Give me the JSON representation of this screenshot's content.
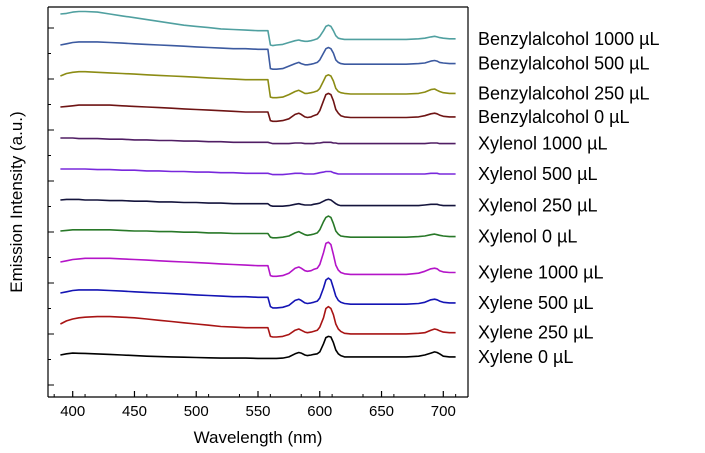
{
  "chart_data": {
    "type": "line",
    "title": "",
    "xlabel": "Wavelength (nm)",
    "ylabel": "Emission Intensity (a.u.)",
    "xlim": [
      380,
      720
    ],
    "xticks": [
      400,
      450,
      500,
      550,
      600,
      650,
      700
    ],
    "y_tick_labels": "none",
    "grid": false,
    "legend": "labels placed at the right end of each trace",
    "stack_order": "bottom to top",
    "x": [
      390,
      395,
      400,
      405,
      410,
      420,
      430,
      440,
      450,
      460,
      470,
      480,
      490,
      500,
      510,
      520,
      530,
      540,
      550,
      555,
      558,
      560,
      562,
      565,
      570,
      575,
      580,
      583,
      585,
      588,
      590,
      593,
      595,
      598,
      600,
      603,
      605,
      607,
      609,
      611,
      613,
      615,
      617,
      620,
      625,
      630,
      640,
      650,
      660,
      670,
      680,
      685,
      690,
      693,
      695,
      697,
      700,
      705,
      710
    ],
    "series": [
      {
        "name": "Xylene 0 µL",
        "color": "#000000",
        "offset": 0.0,
        "values": [
          0.0,
          0.02,
          0.03,
          0.028,
          0.025,
          0.018,
          0.01,
          0.0,
          -0.01,
          -0.02,
          -0.025,
          -0.03,
          -0.035,
          -0.04,
          -0.045,
          -0.05,
          -0.05,
          -0.05,
          -0.055,
          -0.055,
          -0.055,
          -0.055,
          -0.055,
          -0.055,
          -0.05,
          -0.03,
          0.02,
          0.04,
          0.03,
          0.0,
          -0.01,
          0.0,
          0.01,
          0.02,
          0.05,
          0.18,
          0.28,
          0.3,
          0.29,
          0.2,
          0.08,
          0.02,
          -0.01,
          -0.03,
          -0.03,
          -0.03,
          -0.03,
          -0.03,
          -0.03,
          -0.03,
          -0.02,
          0.0,
          0.03,
          0.05,
          0.04,
          0.02,
          -0.02,
          -0.03,
          -0.03
        ]
      },
      {
        "name": "Xylene 250 µL",
        "color": "#a81414",
        "offset": 0.5,
        "values": [
          0.0,
          0.05,
          0.08,
          0.1,
          0.11,
          0.12,
          0.12,
          0.11,
          0.1,
          0.08,
          0.06,
          0.04,
          0.02,
          0.0,
          -0.02,
          -0.04,
          -0.05,
          -0.06,
          -0.06,
          -0.06,
          -0.06,
          -0.2,
          -0.21,
          -0.21,
          -0.2,
          -0.17,
          -0.1,
          -0.08,
          -0.1,
          -0.13,
          -0.14,
          -0.13,
          -0.12,
          -0.1,
          -0.05,
          0.1,
          0.25,
          0.28,
          0.25,
          0.15,
          0.0,
          -0.08,
          -0.12,
          -0.15,
          -0.16,
          -0.16,
          -0.16,
          -0.16,
          -0.16,
          -0.16,
          -0.15,
          -0.14,
          -0.1,
          -0.08,
          -0.09,
          -0.11,
          -0.13,
          -0.14,
          -0.14
        ]
      },
      {
        "name": "Xylene 500 µL",
        "color": "#1414b4",
        "offset": 1.0,
        "values": [
          0.0,
          0.02,
          0.04,
          0.05,
          0.05,
          0.05,
          0.04,
          0.03,
          0.02,
          0.01,
          0.0,
          -0.01,
          -0.02,
          -0.03,
          -0.04,
          -0.05,
          -0.06,
          -0.06,
          -0.07,
          -0.07,
          -0.07,
          -0.22,
          -0.24,
          -0.24,
          -0.23,
          -0.2,
          -0.12,
          -0.1,
          -0.12,
          -0.16,
          -0.17,
          -0.16,
          -0.15,
          -0.13,
          -0.08,
          0.08,
          0.21,
          0.24,
          0.21,
          0.08,
          -0.05,
          -0.12,
          -0.15,
          -0.17,
          -0.18,
          -0.18,
          -0.18,
          -0.18,
          -0.18,
          -0.18,
          -0.17,
          -0.15,
          -0.11,
          -0.1,
          -0.11,
          -0.13,
          -0.15,
          -0.16,
          -0.16
        ]
      },
      {
        "name": "Xylene 1000 µL",
        "color": "#b414c8",
        "offset": 1.5,
        "values": [
          0.0,
          0.02,
          0.04,
          0.05,
          0.06,
          0.06,
          0.06,
          0.05,
          0.04,
          0.03,
          0.02,
          0.01,
          0.0,
          -0.01,
          -0.02,
          -0.03,
          -0.04,
          -0.05,
          -0.06,
          -0.06,
          -0.06,
          -0.22,
          -0.23,
          -0.23,
          -0.22,
          -0.18,
          -0.1,
          -0.08,
          -0.1,
          -0.14,
          -0.15,
          -0.14,
          -0.12,
          -0.1,
          -0.04,
          0.15,
          0.3,
          0.32,
          0.28,
          0.12,
          -0.05,
          -0.13,
          -0.17,
          -0.19,
          -0.2,
          -0.2,
          -0.2,
          -0.2,
          -0.2,
          -0.2,
          -0.18,
          -0.15,
          -0.11,
          -0.1,
          -0.11,
          -0.14,
          -0.16,
          -0.17,
          -0.17
        ]
      },
      {
        "name": "Xylenol 0 µL",
        "color": "#287828",
        "offset": 2.0,
        "values": [
          0.0,
          0.01,
          0.02,
          0.02,
          0.02,
          0.02,
          0.02,
          0.01,
          0.0,
          0.0,
          -0.01,
          -0.01,
          -0.02,
          -0.02,
          -0.03,
          -0.03,
          -0.04,
          -0.04,
          -0.04,
          -0.04,
          -0.04,
          -0.1,
          -0.11,
          -0.11,
          -0.1,
          -0.08,
          -0.03,
          -0.01,
          -0.03,
          -0.06,
          -0.07,
          -0.06,
          -0.05,
          -0.03,
          0.02,
          0.15,
          0.22,
          0.24,
          0.22,
          0.12,
          0.0,
          -0.05,
          -0.08,
          -0.09,
          -0.1,
          -0.1,
          -0.1,
          -0.1,
          -0.1,
          -0.1,
          -0.09,
          -0.08,
          -0.06,
          -0.05,
          -0.06,
          -0.07,
          -0.08,
          -0.09,
          -0.09
        ]
      },
      {
        "name": "Xylenol 250 µL",
        "color": "#14143c",
        "offset": 2.5,
        "values": [
          0.0,
          0.01,
          0.01,
          0.01,
          0.0,
          0.0,
          -0.01,
          -0.01,
          -0.02,
          -0.02,
          -0.03,
          -0.03,
          -0.04,
          -0.04,
          -0.05,
          -0.05,
          -0.06,
          -0.06,
          -0.06,
          -0.06,
          -0.06,
          -0.09,
          -0.1,
          -0.1,
          -0.1,
          -0.09,
          -0.07,
          -0.06,
          -0.07,
          -0.08,
          -0.08,
          -0.08,
          -0.07,
          -0.06,
          -0.05,
          -0.02,
          0.0,
          0.01,
          0.0,
          -0.03,
          -0.06,
          -0.08,
          -0.09,
          -0.09,
          -0.09,
          -0.09,
          -0.09,
          -0.09,
          -0.09,
          -0.09,
          -0.09,
          -0.08,
          -0.07,
          -0.07,
          -0.07,
          -0.08,
          -0.09,
          -0.09,
          -0.09
        ]
      },
      {
        "name": "Xylenol 500 µL",
        "color": "#7828dc",
        "offset": 3.0,
        "values": [
          0.0,
          0.0,
          0.0,
          0.0,
          0.0,
          -0.01,
          -0.01,
          -0.02,
          -0.02,
          -0.03,
          -0.03,
          -0.04,
          -0.04,
          -0.05,
          -0.05,
          -0.06,
          -0.06,
          -0.07,
          -0.07,
          -0.07,
          -0.07,
          -0.08,
          -0.09,
          -0.09,
          -0.09,
          -0.08,
          -0.07,
          -0.07,
          -0.07,
          -0.08,
          -0.08,
          -0.08,
          -0.08,
          -0.07,
          -0.06,
          -0.05,
          -0.04,
          -0.04,
          -0.04,
          -0.06,
          -0.07,
          -0.08,
          -0.08,
          -0.08,
          -0.08,
          -0.08,
          -0.08,
          -0.08,
          -0.08,
          -0.08,
          -0.08,
          -0.08,
          -0.07,
          -0.07,
          -0.07,
          -0.08,
          -0.08,
          -0.08,
          -0.08
        ]
      },
      {
        "name": "Xylenol 1000 µL",
        "color": "#501e64",
        "offset": 3.5,
        "values": [
          0.0,
          0.0,
          0.0,
          -0.01,
          -0.01,
          -0.01,
          -0.02,
          -0.02,
          -0.03,
          -0.03,
          -0.04,
          -0.04,
          -0.05,
          -0.05,
          -0.06,
          -0.06,
          -0.07,
          -0.07,
          -0.07,
          -0.07,
          -0.07,
          -0.08,
          -0.09,
          -0.09,
          -0.09,
          -0.09,
          -0.08,
          -0.08,
          -0.08,
          -0.09,
          -0.09,
          -0.09,
          -0.09,
          -0.08,
          -0.08,
          -0.07,
          -0.07,
          -0.07,
          -0.07,
          -0.08,
          -0.08,
          -0.09,
          -0.09,
          -0.09,
          -0.09,
          -0.09,
          -0.09,
          -0.09,
          -0.09,
          -0.09,
          -0.09,
          -0.09,
          -0.08,
          -0.08,
          -0.08,
          -0.09,
          -0.09,
          -0.09,
          -0.09
        ]
      },
      {
        "name": "Benzylalcohol 0 µL",
        "color": "#6e1414",
        "offset": 4.0,
        "values": [
          0.0,
          0.01,
          0.02,
          0.03,
          0.03,
          0.03,
          0.03,
          0.02,
          0.01,
          0.0,
          -0.01,
          -0.02,
          -0.03,
          -0.04,
          -0.05,
          -0.06,
          -0.07,
          -0.08,
          -0.08,
          -0.08,
          -0.08,
          -0.22,
          -0.23,
          -0.23,
          -0.22,
          -0.19,
          -0.12,
          -0.1,
          -0.12,
          -0.16,
          -0.17,
          -0.16,
          -0.14,
          -0.12,
          -0.06,
          0.1,
          0.2,
          0.22,
          0.2,
          0.1,
          -0.04,
          -0.1,
          -0.14,
          -0.16,
          -0.17,
          -0.17,
          -0.17,
          -0.17,
          -0.17,
          -0.17,
          -0.16,
          -0.14,
          -0.11,
          -0.1,
          -0.11,
          -0.13,
          -0.15,
          -0.16,
          -0.16
        ]
      },
      {
        "name": "Benzylalcohol 250 µL",
        "color": "#8c8c14",
        "offset": 4.5,
        "values": [
          0.0,
          0.04,
          0.06,
          0.07,
          0.07,
          0.06,
          0.05,
          0.04,
          0.03,
          0.02,
          0.01,
          0.0,
          -0.01,
          -0.02,
          -0.03,
          -0.04,
          -0.05,
          -0.06,
          -0.06,
          -0.06,
          -0.06,
          -0.34,
          -0.35,
          -0.35,
          -0.34,
          -0.3,
          -0.25,
          -0.23,
          -0.25,
          -0.28,
          -0.28,
          -0.27,
          -0.26,
          -0.24,
          -0.2,
          -0.08,
          0.0,
          0.02,
          0.0,
          -0.08,
          -0.2,
          -0.25,
          -0.27,
          -0.28,
          -0.29,
          -0.29,
          -0.29,
          -0.29,
          -0.29,
          -0.29,
          -0.28,
          -0.26,
          -0.22,
          -0.21,
          -0.23,
          -0.25,
          -0.27,
          -0.28,
          -0.28
        ]
      },
      {
        "name": "Benzylalcohol 500 µL",
        "color": "#3c5aa0",
        "offset": 5.0,
        "values": [
          0.0,
          0.02,
          0.04,
          0.05,
          0.05,
          0.05,
          0.04,
          0.03,
          0.02,
          0.01,
          0.0,
          -0.01,
          -0.02,
          -0.03,
          -0.04,
          -0.05,
          -0.06,
          -0.06,
          -0.07,
          -0.07,
          -0.07,
          -0.38,
          -0.39,
          -0.39,
          -0.38,
          -0.34,
          -0.3,
          -0.28,
          -0.3,
          -0.32,
          -0.32,
          -0.31,
          -0.3,
          -0.28,
          -0.24,
          -0.13,
          -0.06,
          -0.04,
          -0.06,
          -0.13,
          -0.24,
          -0.28,
          -0.3,
          -0.31,
          -0.31,
          -0.31,
          -0.31,
          -0.31,
          -0.31,
          -0.31,
          -0.3,
          -0.29,
          -0.26,
          -0.25,
          -0.26,
          -0.28,
          -0.29,
          -0.3,
          -0.3
        ]
      },
      {
        "name": "Benzylalcohol 1000 µL",
        "color": "#50a0a0",
        "offset": 5.5,
        "values": [
          0.0,
          0.01,
          0.03,
          0.04,
          0.04,
          0.03,
          0.0,
          -0.03,
          -0.06,
          -0.09,
          -0.12,
          -0.15,
          -0.18,
          -0.2,
          -0.22,
          -0.24,
          -0.25,
          -0.26,
          -0.27,
          -0.27,
          -0.27,
          -0.5,
          -0.51,
          -0.5,
          -0.49,
          -0.46,
          -0.43,
          -0.42,
          -0.43,
          -0.44,
          -0.44,
          -0.43,
          -0.42,
          -0.4,
          -0.36,
          -0.27,
          -0.2,
          -0.18,
          -0.2,
          -0.27,
          -0.35,
          -0.39,
          -0.4,
          -0.41,
          -0.41,
          -0.41,
          -0.41,
          -0.41,
          -0.41,
          -0.41,
          -0.4,
          -0.39,
          -0.37,
          -0.36,
          -0.37,
          -0.38,
          -0.39,
          -0.4,
          -0.4
        ]
      }
    ]
  }
}
